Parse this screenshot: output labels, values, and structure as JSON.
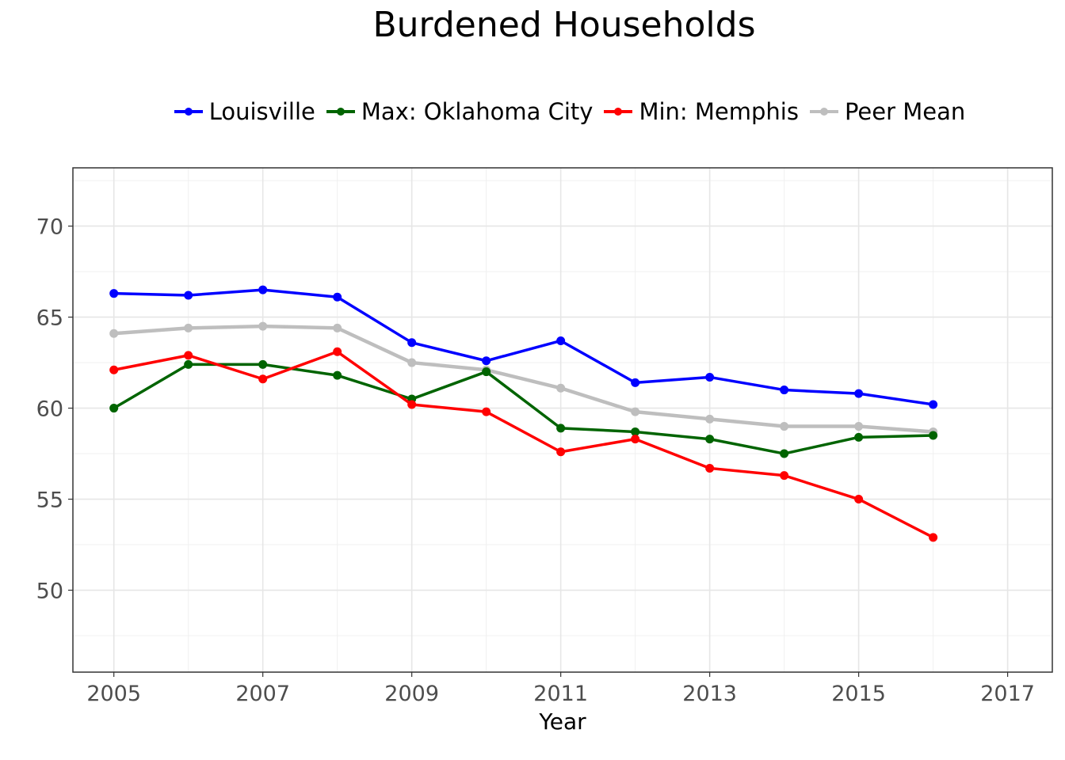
{
  "chart_data": {
    "type": "line",
    "title": "Burdened Households",
    "xlabel": "Year",
    "ylabel": "",
    "xlim": [
      2004.45,
      2017.6
    ],
    "ylim": [
      45.5,
      73.2
    ],
    "x_ticks": [
      2005,
      2007,
      2009,
      2011,
      2013,
      2015,
      2017
    ],
    "y_ticks": [
      50,
      55,
      60,
      65,
      70
    ],
    "grid": true,
    "legend_position": "top",
    "x": [
      2005,
      2006,
      2007,
      2008,
      2009,
      2010,
      2011,
      2012,
      2013,
      2014,
      2015,
      2016
    ],
    "series": [
      {
        "name": "Louisville",
        "color": "#0000ff",
        "values": [
          66.3,
          66.2,
          66.5,
          66.1,
          63.6,
          62.6,
          63.7,
          61.4,
          61.7,
          61.0,
          60.8,
          60.2
        ]
      },
      {
        "name": "Max: Oklahoma City",
        "color": "#006400",
        "values": [
          60.0,
          62.4,
          62.4,
          61.8,
          60.5,
          62.0,
          58.9,
          58.7,
          58.3,
          57.5,
          58.4,
          58.5
        ]
      },
      {
        "name": "Min: Memphis",
        "color": "#ff0000",
        "values": [
          62.1,
          62.9,
          61.6,
          63.1,
          60.2,
          59.8,
          57.6,
          58.3,
          56.7,
          56.3,
          55.0,
          52.9
        ]
      },
      {
        "name": "Peer Mean",
        "color": "#bebebe",
        "values": [
          64.1,
          64.4,
          64.5,
          64.4,
          62.5,
          62.1,
          61.1,
          59.8,
          59.4,
          59.0,
          59.0,
          58.7
        ]
      }
    ]
  }
}
